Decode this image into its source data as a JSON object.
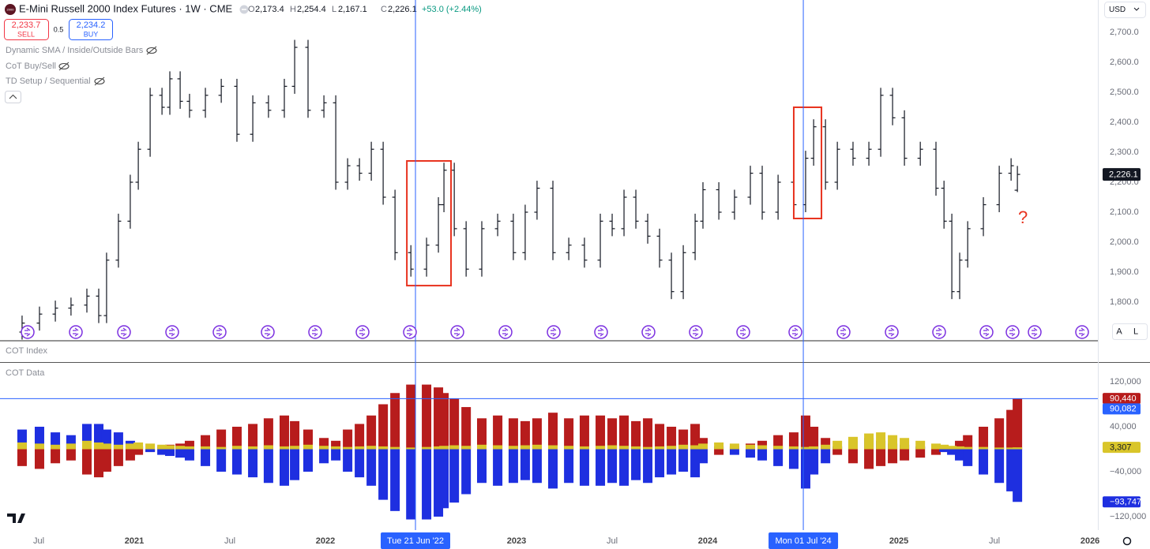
{
  "header": {
    "logo": "2000",
    "title": "E-Mini Russell 2000 Index Futures · 1W · CME",
    "ohlc": [
      {
        "key": "O",
        "value": "2,173.4"
      },
      {
        "key": "H",
        "value": "2,254.4"
      },
      {
        "key": "L",
        "value": "2,167.1"
      },
      {
        "key": "C",
        "value": "2,226.1"
      }
    ],
    "change": "+53.0 (+2.44%)",
    "sell": {
      "price": "2,233.7",
      "label": "SELL"
    },
    "spread": "0.5",
    "buy": {
      "price": "2,234.2",
      "label": "BUY"
    },
    "indicators": [
      "Dynamic SMA / Inside/Outside Bars",
      "CoT Buy/Sell",
      "TD Setup / Sequential"
    ],
    "currency": "USD",
    "cot_index": "COT Index",
    "buttons": [
      "A",
      "L"
    ]
  },
  "chart_data": [
    {
      "type": "ohlc",
      "xlim": [
        2020.2975,
        2026.041
      ],
      "ylim": [
        1671,
        2808
      ],
      "yticks": [
        {
          "value": 2700,
          "label": "2,700.0"
        },
        {
          "value": 2600,
          "label": "2,600.0"
        },
        {
          "value": 2500,
          "label": "2,500.0"
        },
        {
          "value": 2400,
          "label": "2,400.0"
        },
        {
          "value": 2300,
          "label": "2,300.0"
        },
        {
          "value": 2200,
          "label": "2,200.0"
        },
        {
          "value": 2100,
          "label": "2,100.0"
        },
        {
          "value": 2000,
          "label": "2,000.0"
        },
        {
          "value": 1900,
          "label": "1,900.0"
        },
        {
          "value": 1800,
          "label": "1,800.0"
        }
      ],
      "color": "#131722",
      "last_label": "2,226.1",
      "x": [
        2020.413,
        2020.504,
        2020.587,
        2020.669,
        2020.752,
        2020.814,
        2020.855,
        2020.917,
        2020.979,
        2021.021,
        2021.083,
        2021.145,
        2021.186,
        2021.24,
        2021.289,
        2021.372,
        2021.455,
        2021.537,
        2021.62,
        2021.702,
        2021.785,
        2021.839,
        2021.909,
        2021.992,
        2022.054,
        2022.116,
        2022.178,
        2022.24,
        2022.302,
        2022.364,
        2022.447,
        2022.529,
        2022.591,
        2022.62,
        2022.674,
        2022.736,
        2022.818,
        2022.901,
        2022.983,
        2023.045,
        2023.107,
        2023.19,
        2023.273,
        2023.355,
        2023.438,
        2023.5,
        2023.562,
        2023.624,
        2023.686,
        2023.748,
        2023.81,
        2023.872,
        2023.934,
        2023.975,
        2024.058,
        2024.14,
        2024.223,
        2024.285,
        2024.368,
        2024.45,
        2024.512,
        2024.554,
        2024.616,
        2024.678,
        2024.76,
        2024.843,
        2024.905,
        2024.967,
        2025.029,
        2025.112,
        2025.194,
        2025.236,
        2025.277,
        2025.318,
        2025.36,
        2025.442,
        2025.525,
        2025.587,
        2025.62
      ],
      "open": [
        1700,
        1730,
        1760,
        1780,
        1790,
        1820,
        1755,
        1940,
        2070,
        2200,
        2310,
        2490,
        2450,
        2545,
        2470,
        2440,
        2490,
        2520,
        2360,
        2465,
        2440,
        2520,
        2650,
        2440,
        2465,
        2200,
        2255,
        2230,
        2310,
        2150,
        1965,
        1910,
        1990,
        2125,
        2240,
        2045,
        1910,
        2045,
        2070,
        1965,
        2100,
        2180,
        1965,
        1990,
        1940,
        2070,
        2045,
        2150,
        2070,
        2020,
        1940,
        1835,
        1965,
        2070,
        2175,
        2100,
        2150,
        2230,
        2100,
        2200,
        2125,
        2280,
        2385,
        2200,
        2310,
        2280,
        2310,
        2490,
        2415,
        2280,
        2310,
        2180,
        2070,
        1835,
        1940,
        2045,
        2125,
        2230,
        2173.4
      ],
      "high": [
        1755,
        1785,
        1805,
        1815,
        1845,
        1845,
        1965,
        2095,
        2225,
        2335,
        2515,
        2515,
        2570,
        2570,
        2495,
        2515,
        2545,
        2545,
        2490,
        2490,
        2545,
        2675,
        2675,
        2490,
        2490,
        2280,
        2280,
        2335,
        2335,
        2175,
        1990,
        2015,
        2150,
        2265,
        2265,
        2070,
        2070,
        2095,
        2095,
        2125,
        2205,
        2205,
        2015,
        2015,
        2095,
        2095,
        2175,
        2175,
        2095,
        2045,
        1965,
        1990,
        2095,
        2200,
        2200,
        2175,
        2255,
        2255,
        2225,
        2225,
        2305,
        2410,
        2410,
        2335,
        2335,
        2335,
        2515,
        2515,
        2440,
        2335,
        2335,
        2205,
        2095,
        1965,
        2070,
        2150,
        2255,
        2280,
        2254.4
      ],
      "low": [
        1675,
        1705,
        1735,
        1755,
        1765,
        1730,
        1730,
        1915,
        2045,
        2175,
        2285,
        2425,
        2425,
        2445,
        2415,
        2415,
        2465,
        2335,
        2335,
        2415,
        2415,
        2495,
        2415,
        2415,
        2175,
        2175,
        2205,
        2205,
        2125,
        1940,
        1885,
        1885,
        1965,
        2100,
        2020,
        1885,
        1885,
        2020,
        1940,
        1940,
        2075,
        1940,
        1940,
        1915,
        1915,
        2020,
        2020,
        2045,
        1995,
        1915,
        1810,
        1810,
        1940,
        2045,
        2075,
        2075,
        2125,
        2075,
        2075,
        2100,
        2100,
        2255,
        2175,
        2175,
        2255,
        2255,
        2285,
        2390,
        2255,
        2255,
        2155,
        2045,
        1810,
        1810,
        1915,
        2020,
        2100,
        2205,
        2167.1
      ],
      "close": [
        1730,
        1760,
        1780,
        1790,
        1820,
        1755,
        1940,
        2070,
        2200,
        2310,
        2490,
        2450,
        2545,
        2470,
        2440,
        2490,
        2520,
        2360,
        2465,
        2440,
        2520,
        2650,
        2440,
        2465,
        2200,
        2255,
        2230,
        2310,
        2150,
        1965,
        1910,
        1990,
        2125,
        2240,
        2045,
        1910,
        2045,
        2070,
        1965,
        2100,
        2180,
        1965,
        1990,
        1940,
        2070,
        2045,
        2150,
        2070,
        2020,
        1940,
        1835,
        1965,
        2070,
        2175,
        2100,
        2150,
        2230,
        2100,
        2200,
        2125,
        2280,
        2385,
        2200,
        2310,
        2280,
        2310,
        2490,
        2415,
        2280,
        2310,
        2180,
        2070,
        1835,
        1940,
        2045,
        2125,
        2230,
        2255,
        2226.1
      ],
      "highlights": [
        {
          "x0": 2022.426,
          "x1": 2022.657,
          "y0": 1855,
          "y1": 2271,
          "color": "#e8321e"
        },
        {
          "x0": 2024.45,
          "x1": 2024.595,
          "y0": 2079,
          "y1": 2450,
          "color": "#e8321e"
        }
      ],
      "annotation": {
        "text": "?",
        "x": 2025.649,
        "y": 2079,
        "color": "#e8321e"
      }
    },
    {
      "type": "bar",
      "title": "COT Data",
      "xlim": [
        2020.2975,
        2026.041
      ],
      "ylim": [
        -143900,
        150900
      ],
      "yticks": [
        {
          "value": 120000,
          "label": "120,000"
        },
        {
          "value": 40000,
          "label": "40,000"
        },
        {
          "value": -40000,
          "label": "−40,000"
        },
        {
          "value": -120000,
          "label": "−120,000"
        }
      ],
      "xticks": [
        {
          "value": 2020.5,
          "label": "Jul"
        },
        2021,
        {
          "value": 2021.5,
          "label": "Jul"
        },
        2022,
        2023,
        {
          "value": 2023.5,
          "label": "Jul"
        },
        2024,
        2025,
        {
          "value": 2025.5,
          "label": "Jul"
        },
        2026
      ],
      "x": [
        2020.413,
        2020.504,
        2020.587,
        2020.669,
        2020.752,
        2020.814,
        2020.855,
        2020.917,
        2020.979,
        2021.021,
        2021.083,
        2021.145,
        2021.186,
        2021.24,
        2021.289,
        2021.372,
        2021.455,
        2021.537,
        2021.62,
        2021.702,
        2021.785,
        2021.839,
        2021.909,
        2021.992,
        2022.054,
        2022.116,
        2022.178,
        2022.24,
        2022.302,
        2022.364,
        2022.447,
        2022.529,
        2022.591,
        2022.62,
        2022.674,
        2022.736,
        2022.818,
        2022.901,
        2022.983,
        2023.045,
        2023.107,
        2023.19,
        2023.273,
        2023.355,
        2023.438,
        2023.5,
        2023.562,
        2023.624,
        2023.686,
        2023.748,
        2023.81,
        2023.872,
        2023.934,
        2023.975,
        2024.058,
        2024.14,
        2024.223,
        2024.285,
        2024.368,
        2024.45,
        2024.512,
        2024.554,
        2024.616,
        2024.678,
        2024.76,
        2024.843,
        2024.905,
        2024.967,
        2025.029,
        2025.112,
        2025.194,
        2025.236,
        2025.277,
        2025.318,
        2025.36,
        2025.442,
        2025.525,
        2025.587,
        2025.62
      ],
      "series": [
        {
          "color": "#b71c1c",
          "last_label": "90,440",
          "values": [
            -30000,
            -35000,
            -25000,
            -20000,
            -45000,
            -50000,
            -40000,
            -30000,
            -20000,
            -10000,
            -5000,
            5000,
            8000,
            10000,
            15000,
            25000,
            35000,
            40000,
            45000,
            55000,
            60000,
            50000,
            35000,
            20000,
            15000,
            35000,
            45000,
            60000,
            80000,
            100000,
            115000,
            115000,
            110000,
            100000,
            90000,
            75000,
            55000,
            60000,
            55000,
            50000,
            55000,
            65000,
            55000,
            60000,
            60000,
            55000,
            60000,
            50000,
            55000,
            45000,
            40000,
            35000,
            45000,
            20000,
            -10000,
            5000,
            10000,
            15000,
            25000,
            30000,
            60000,
            40000,
            20000,
            -10000,
            -25000,
            -35000,
            -30000,
            -25000,
            -20000,
            -15000,
            -10000,
            -5000,
            5000,
            15000,
            25000,
            40000,
            55000,
            70000,
            90440
          ]
        },
        {
          "color": "#1e2fe0",
          "last_label": "−93,747",
          "values": [
            35000,
            40000,
            30000,
            25000,
            45000,
            45000,
            35000,
            30000,
            15000,
            5000,
            -5000,
            -10000,
            -12000,
            -15000,
            -20000,
            -30000,
            -40000,
            -45000,
            -50000,
            -60000,
            -65000,
            -55000,
            -40000,
            -25000,
            -20000,
            -40000,
            -50000,
            -65000,
            -90000,
            -110000,
            -125000,
            -125000,
            -120000,
            -105000,
            -95000,
            -80000,
            -60000,
            -65000,
            -60000,
            -55000,
            -60000,
            -70000,
            -60000,
            -65000,
            -65000,
            -60000,
            -65000,
            -55000,
            -60000,
            -50000,
            -45000,
            -40000,
            -50000,
            -25000,
            5000,
            -10000,
            -15000,
            -20000,
            -30000,
            -35000,
            -70000,
            -45000,
            -25000,
            5000,
            15000,
            20000,
            15000,
            10000,
            8000,
            5000,
            3000,
            -5000,
            -10000,
            -20000,
            -30000,
            -45000,
            -60000,
            -75000,
            -93747
          ]
        },
        {
          "color": "#d9c52a",
          "last_label": "3,307",
          "values": [
            12000,
            10000,
            8000,
            10000,
            15000,
            12000,
            10000,
            8000,
            10000,
            12000,
            10000,
            8000,
            7000,
            6000,
            5000,
            5000,
            4000,
            6000,
            5000,
            7000,
            5000,
            6000,
            8000,
            6000,
            5000,
            4000,
            5000,
            6000,
            5000,
            4000,
            3000,
            4000,
            5000,
            6000,
            7000,
            6000,
            8000,
            7000,
            6000,
            7000,
            8000,
            7000,
            6000,
            5000,
            6000,
            7000,
            6000,
            5000,
            4000,
            5000,
            6000,
            8000,
            7000,
            10000,
            12000,
            10000,
            8000,
            7000,
            6000,
            5000,
            4000,
            5000,
            8000,
            15000,
            22000,
            28000,
            30000,
            25000,
            20000,
            15000,
            10000,
            8000,
            6000,
            5000,
            4000,
            4000,
            3000,
            3000,
            3307
          ]
        }
      ]
    }
  ],
  "crosshair": {
    "color": "#2962ff",
    "dates": [
      {
        "x": 2022.471,
        "label": "Tue 21 Jun '22"
      },
      {
        "x": 2024.5,
        "label": "Mon 01 Jul '24"
      }
    ],
    "y_value": 90082,
    "y_label": "90,082"
  }
}
